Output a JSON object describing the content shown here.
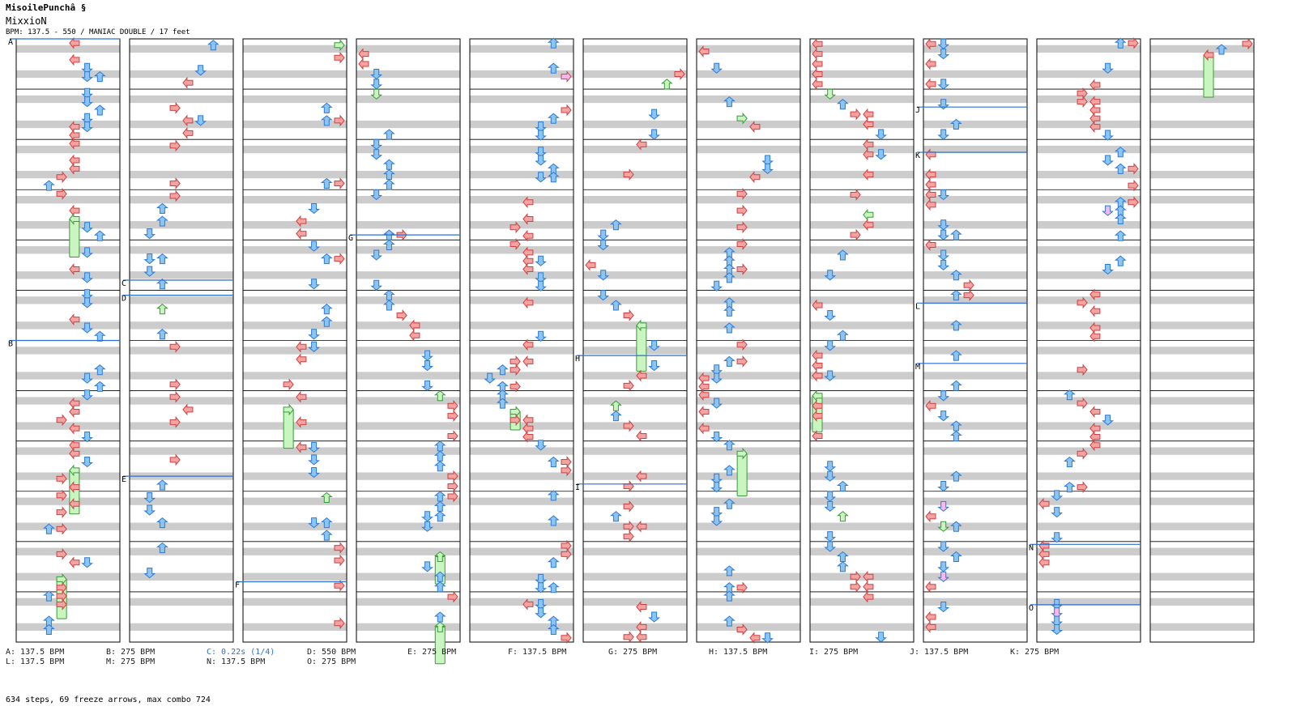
{
  "header": {
    "title": "MisoilePunchâ §",
    "artist": "MixxioN",
    "meta": "BPM: 137.5 - 550 / MANIAC DOUBLE / 17 feet"
  },
  "colors": {
    "left": "#f4a3a3",
    "left_stroke": "#d04040",
    "down": "#8cc4f2",
    "down_stroke": "#2d7ad6",
    "up": "#8cc4f2",
    "right": "#f4a3a3",
    "freeze": "#c8f5c0",
    "freeze_stroke": "#3a9a3a",
    "shock": "#f7b8f0",
    "bpm_line": "#2a6fd0",
    "band": "#cccccc"
  },
  "columns": [
    {
      "markers": [
        {
          "label": "A",
          "pos": 0.0
        },
        {
          "label": "B",
          "pos": 0.5
        }
      ]
    },
    {
      "markers": [
        {
          "label": "C",
          "pos": 0.4
        },
        {
          "label": "D",
          "pos": 0.425
        },
        {
          "label": "E",
          "pos": 0.725
        }
      ]
    },
    {
      "markers": [
        {
          "label": "F",
          "pos": 0.9
        }
      ]
    },
    {
      "markers": [
        {
          "label": "G",
          "pos": 0.325
        }
      ]
    },
    {
      "markers": []
    },
    {
      "markers": [
        {
          "label": "H",
          "pos": 0.525
        },
        {
          "label": "I",
          "pos": 0.738
        }
      ]
    },
    {
      "markers": []
    },
    {
      "markers": []
    },
    {
      "markers": [
        {
          "label": "J",
          "pos": 0.113
        },
        {
          "label": "K",
          "pos": 0.188
        },
        {
          "label": "L",
          "pos": 0.438
        },
        {
          "label": "M",
          "pos": 0.538
        }
      ]
    },
    {
      "markers": [
        {
          "label": "N",
          "pos": 0.838
        },
        {
          "label": "O",
          "pos": 0.938
        }
      ]
    },
    {
      "markers": []
    }
  ],
  "legend": [
    [
      {
        "text": "A: 137.5 BPM"
      },
      {
        "text": "B: 275 BPM"
      },
      {
        "text": "C: 0.22s (1/4)",
        "accent": true
      },
      {
        "text": "D: 550 BPM"
      },
      {
        "text": "E: 275 BPM"
      },
      {
        "text": "F: 137.5 BPM"
      },
      {
        "text": "G: 275 BPM"
      },
      {
        "text": "H: 137.5 BPM"
      },
      {
        "text": "I: 275 BPM"
      },
      {
        "text": "J: 137.5 BPM"
      },
      {
        "text": "K: 275 BPM"
      }
    ],
    [
      {
        "text": "L: 137.5 BPM"
      },
      {
        "text": "M: 275 BPM"
      },
      {
        "text": "N: 137.5 BPM"
      },
      {
        "text": "O: 275 BPM"
      }
    ]
  ],
  "summary": "634 steps, 69 freeze arrows, max combo 724"
}
